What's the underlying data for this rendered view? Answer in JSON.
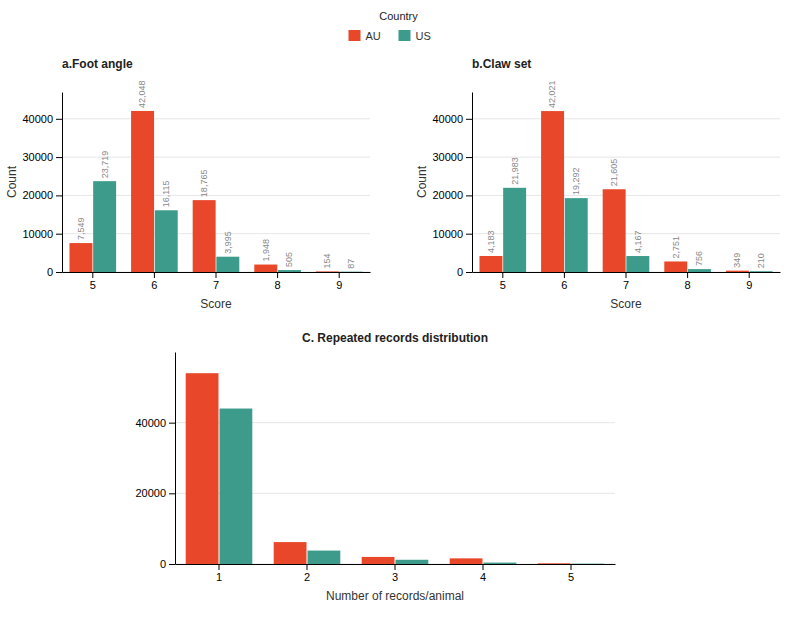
{
  "chart_data": [
    {
      "type": "bar",
      "title": "a.Foot angle",
      "x_label": "Score",
      "y_label": "Count",
      "categories": [
        "5",
        "6",
        "7",
        "8",
        "9"
      ],
      "series": [
        {
          "name": "AU",
          "color": "#E8472A",
          "values": [
            7549,
            42048,
            18765,
            1948,
            154
          ],
          "value_labels": [
            "7,549",
            "42,048",
            "18,765",
            "1,948",
            "154"
          ]
        },
        {
          "name": "US",
          "color": "#3D9B8C",
          "values": [
            23719,
            16115,
            3995,
            505,
            87
          ],
          "value_labels": [
            "23,719",
            "16,115",
            "3,995",
            "505",
            "87"
          ]
        }
      ],
      "ylim": [
        0,
        47000
      ],
      "yticks": [
        0,
        10000,
        20000,
        30000,
        40000
      ],
      "grid": true,
      "data_labels": true,
      "legend": "top",
      "legend_title": "Country"
    },
    {
      "type": "bar",
      "title": "b.Claw set",
      "x_label": "Score",
      "y_label": "Count",
      "categories": [
        "5",
        "6",
        "7",
        "8",
        "9"
      ],
      "series": [
        {
          "color": "#E8472A",
          "values": [
            4183,
            42021,
            21605,
            2751,
            349
          ],
          "value_labels": [
            "4,183",
            "42,021",
            "21,605",
            "2,751",
            "349"
          ]
        },
        {
          "color": "#3D9B8C",
          "values": [
            21983,
            19292,
            4167,
            756,
            210
          ],
          "value_labels": [
            "21,983",
            "19,292",
            "4,167",
            "756",
            "210"
          ]
        }
      ],
      "ylim": [
        0,
        47000
      ],
      "yticks": [
        0,
        10000,
        20000,
        30000,
        40000
      ],
      "grid": true,
      "data_labels": true
    },
    {
      "type": "bar",
      "title": "C. Repeated records distribution",
      "x_label": "Number of records/animal",
      "categories": [
        "1",
        "2",
        "3",
        "4",
        "5"
      ],
      "series": [
        {
          "color": "#E8472A",
          "values": [
            54000,
            6200,
            2000,
            1600,
            200
          ]
        },
        {
          "color": "#3D9B8C",
          "values": [
            44000,
            3800,
            1200,
            400,
            100
          ]
        }
      ],
      "ylim": [
        0,
        60000
      ],
      "yticks": [
        0,
        20000,
        40000
      ],
      "grid": true
    }
  ]
}
